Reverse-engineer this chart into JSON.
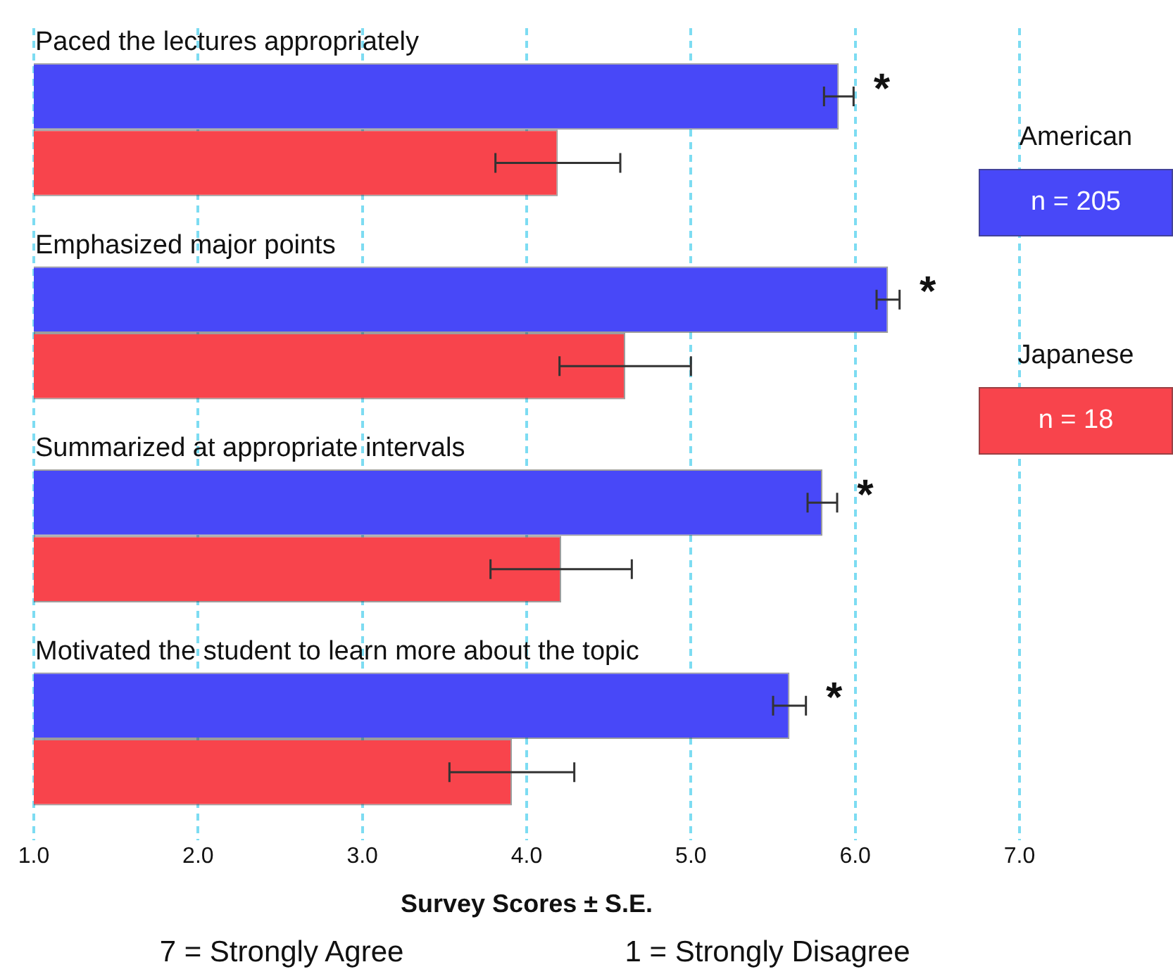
{
  "chart_data": {
    "type": "bar",
    "orientation": "horizontal",
    "xlabel": "Survey Scores ± S.E.",
    "categories": [
      "Paced the lectures appropriately",
      "Emphasized major points",
      "Summarized at appropriate intervals",
      "Motivated the student to learn more about the topic"
    ],
    "series": [
      {
        "name": "American",
        "color": "#4848f8",
        "values": [
          5.9,
          6.2,
          5.8,
          5.6
        ],
        "errors": [
          0.09,
          0.07,
          0.09,
          0.1
        ]
      },
      {
        "name": "Japanese",
        "color": "#f8444c",
        "values": [
          4.19,
          4.6,
          4.21,
          3.91
        ],
        "errors": [
          0.38,
          0.4,
          0.43,
          0.38
        ]
      }
    ],
    "xlim": [
      1,
      7
    ],
    "xticks": [
      {
        "value": 1,
        "label": "1.0"
      },
      {
        "value": 2,
        "label": "2.0"
      },
      {
        "value": 3,
        "label": "3.0"
      },
      {
        "value": 4,
        "label": "4.0"
      },
      {
        "value": 5,
        "label": "5.0"
      },
      {
        "value": 6,
        "label": "6.0"
      },
      {
        "value": 7,
        "label": "7.0"
      }
    ],
    "grid": "x",
    "legend": "right",
    "tick_labels": "x",
    "annotations": [
      "n = 205",
      "n = 18",
      "7 = Strongly Agree",
      "1 = Strongly Disagree",
      "*",
      "*",
      "*",
      "*"
    ]
  }
}
